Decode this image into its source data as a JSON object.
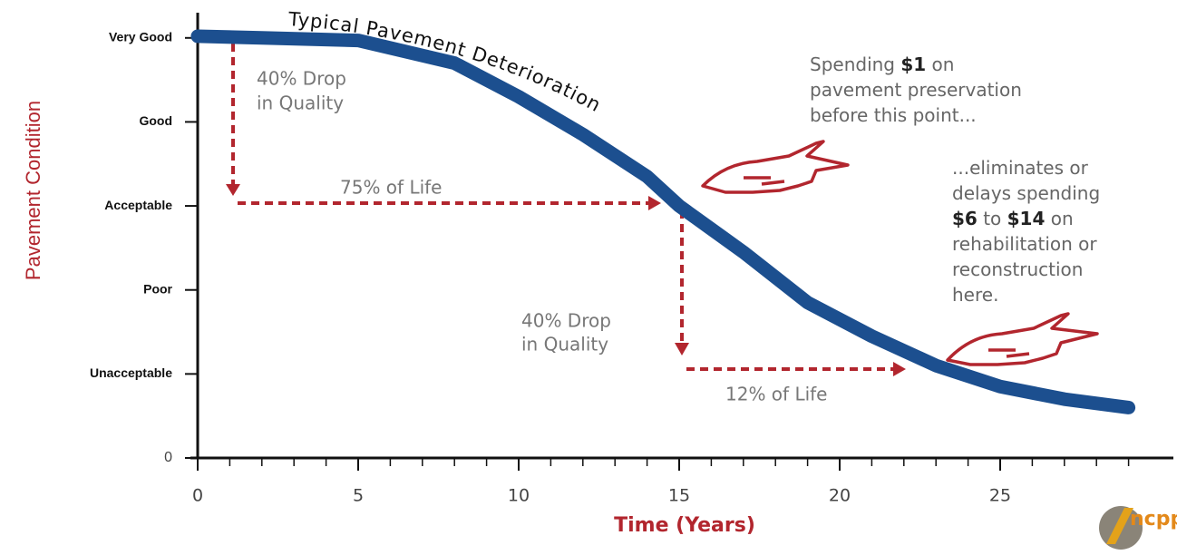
{
  "chart_data": {
    "type": "line",
    "curve_label": "Typical Pavement Deterioration",
    "y_label": "Pavement Condition",
    "x_label": "Time (Years)",
    "x": [
      0,
      2,
      5,
      8,
      10,
      12,
      14,
      15,
      17,
      19,
      21,
      23,
      25,
      27,
      29
    ],
    "series": [
      {
        "color": "#1c4f8f",
        "values": [
          5.02,
          5.0,
          4.97,
          4.7,
          4.3,
          3.85,
          3.35,
          3.0,
          2.45,
          1.85,
          1.45,
          1.1,
          0.85,
          0.7,
          0.6
        ]
      }
    ],
    "xlim": [
      0,
      30
    ],
    "ylim": [
      0,
      5.3
    ],
    "xticks": [
      0,
      5,
      10,
      15,
      20,
      25
    ],
    "xminorticks": [
      1,
      2,
      3,
      4,
      6,
      7,
      8,
      9,
      11,
      12,
      13,
      14,
      16,
      17,
      18,
      19,
      21,
      22,
      23,
      24,
      26,
      27,
      28,
      29
    ],
    "yticks": [
      0,
      {
        "value": 1,
        "label": "Unacceptable"
      },
      {
        "value": 2,
        "label": "Poor"
      },
      {
        "value": 3,
        "label": "Acceptable"
      },
      {
        "value": 4,
        "label": "Good"
      },
      {
        "value": 5,
        "label": "Very Good"
      }
    ],
    "annotations": {
      "drop_1": [
        "40% Drop",
        "in Quality"
      ],
      "life_1": "75% of Life",
      "drop_2": [
        "40% Drop",
        "in Quality"
      ],
      "life_2": "12% of Life",
      "note_1": [
        "Spending $1 on",
        "pavement preservation",
        "before this point..."
      ],
      "note_2": [
        "...eliminates or",
        "delays spending",
        "$6 to $14 on",
        "rehabilitation or",
        "reconstruction",
        "here."
      ]
    },
    "logo": "ncpp"
  }
}
